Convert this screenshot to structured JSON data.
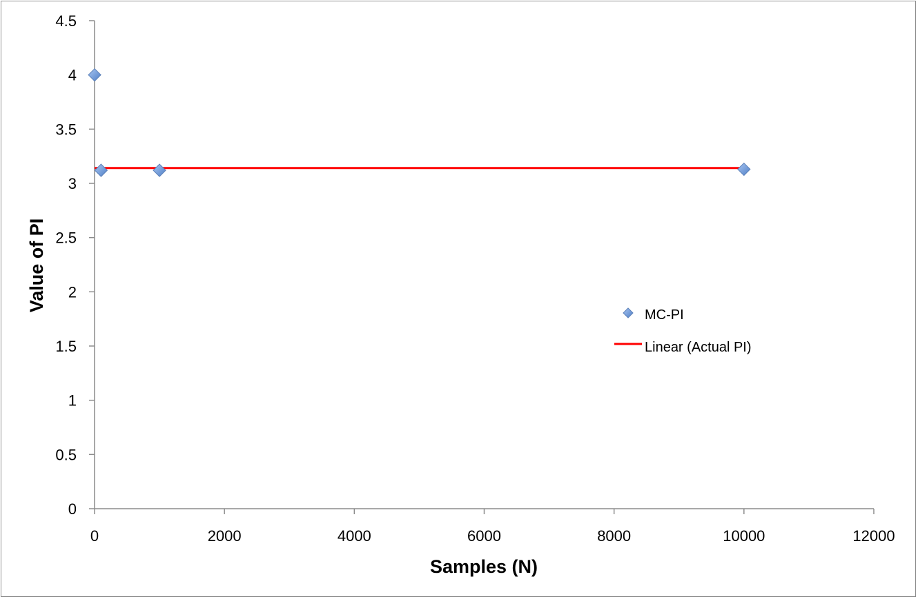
{
  "chart_data": {
    "type": "scatter",
    "xlabel": "Samples (N)",
    "ylabel": "Value of PI",
    "xlim": [
      0,
      12000
    ],
    "ylim": [
      0,
      4.5
    ],
    "x_ticks": [
      "0",
      "2000",
      "4000",
      "6000",
      "8000",
      "10000",
      "12000"
    ],
    "y_ticks": [
      "0",
      "0.5",
      "1",
      "1.5",
      "2",
      "2.5",
      "3",
      "3.5",
      "4",
      "4.5"
    ],
    "grid": false,
    "legend_position": "right",
    "series": [
      {
        "name": "MC-PI",
        "kind": "scatter",
        "marker": "diamond",
        "color": "#5b8fd6",
        "points": [
          {
            "x": 1,
            "y": 4.0
          },
          {
            "x": 100,
            "y": 3.12
          },
          {
            "x": 1000,
            "y": 3.12
          },
          {
            "x": 10000,
            "y": 3.13
          }
        ]
      },
      {
        "name": "Linear (Actual PI)",
        "kind": "line",
        "color": "#ff0000",
        "points": [
          {
            "x": 1,
            "y": 3.14159
          },
          {
            "x": 10000,
            "y": 3.14159
          }
        ]
      }
    ]
  }
}
